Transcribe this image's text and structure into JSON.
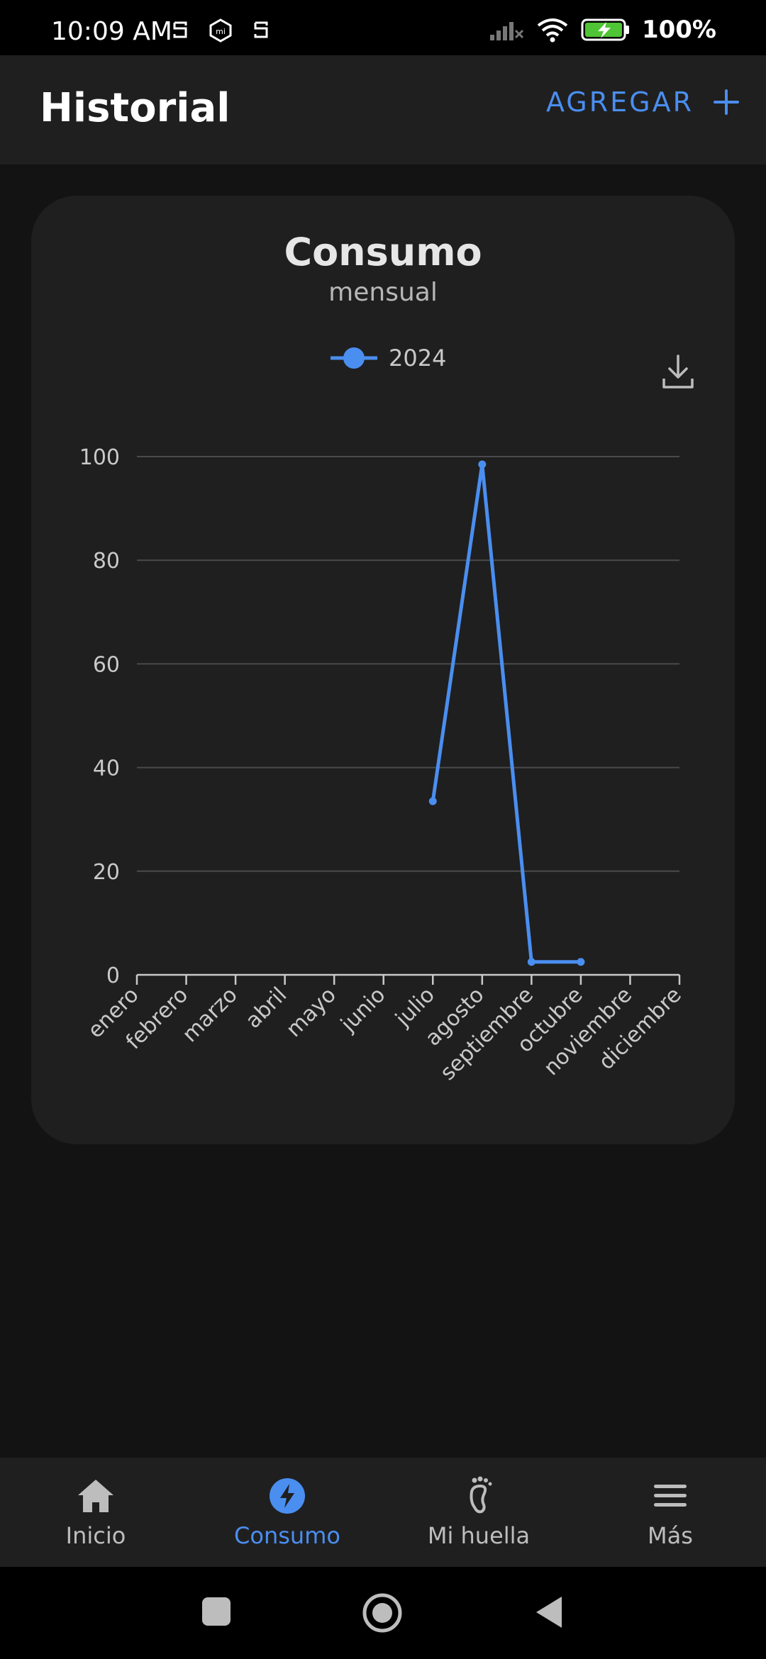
{
  "status_bar": {
    "time": "10:09 AM",
    "battery": "100%",
    "icons": [
      "notification-s-icon",
      "mi-icon",
      "notification-s-icon",
      "signal-icon",
      "wifi-icon",
      "battery-charging-icon"
    ]
  },
  "app_bar": {
    "title": "Historial",
    "add_label": "AGREGAR",
    "accent_color": "#4a8ef0"
  },
  "card": {
    "title": "Consumo",
    "subtitle": "mensual",
    "download_icon": "download-icon"
  },
  "chart_data": {
    "type": "line",
    "categories": [
      "enero",
      "febrero",
      "marzo",
      "abril",
      "mayo",
      "junio",
      "julio",
      "agosto",
      "septiembre",
      "octubre",
      "noviembre",
      "diciembre"
    ],
    "series": [
      {
        "name": "2024",
        "color": "#4a8ef0",
        "values": [
          null,
          null,
          null,
          null,
          null,
          null,
          33.5,
          98.5,
          2.5,
          2.5,
          null,
          null
        ]
      }
    ],
    "ylim": [
      0,
      100
    ],
    "yticks": [
      0,
      20,
      40,
      60,
      80,
      100
    ],
    "grid": true,
    "legend_position": "top-center"
  },
  "bottom_nav": {
    "items": [
      {
        "label": "Inicio",
        "icon": "home-icon",
        "active": false
      },
      {
        "label": "Consumo",
        "icon": "bolt-icon",
        "active": true
      },
      {
        "label": "Mi huella",
        "icon": "footprint-icon",
        "active": false
      },
      {
        "label": "Más",
        "icon": "menu-icon",
        "active": false
      }
    ]
  },
  "system_nav": {
    "icons": [
      "recents-icon",
      "home-circle-icon",
      "back-icon"
    ]
  }
}
